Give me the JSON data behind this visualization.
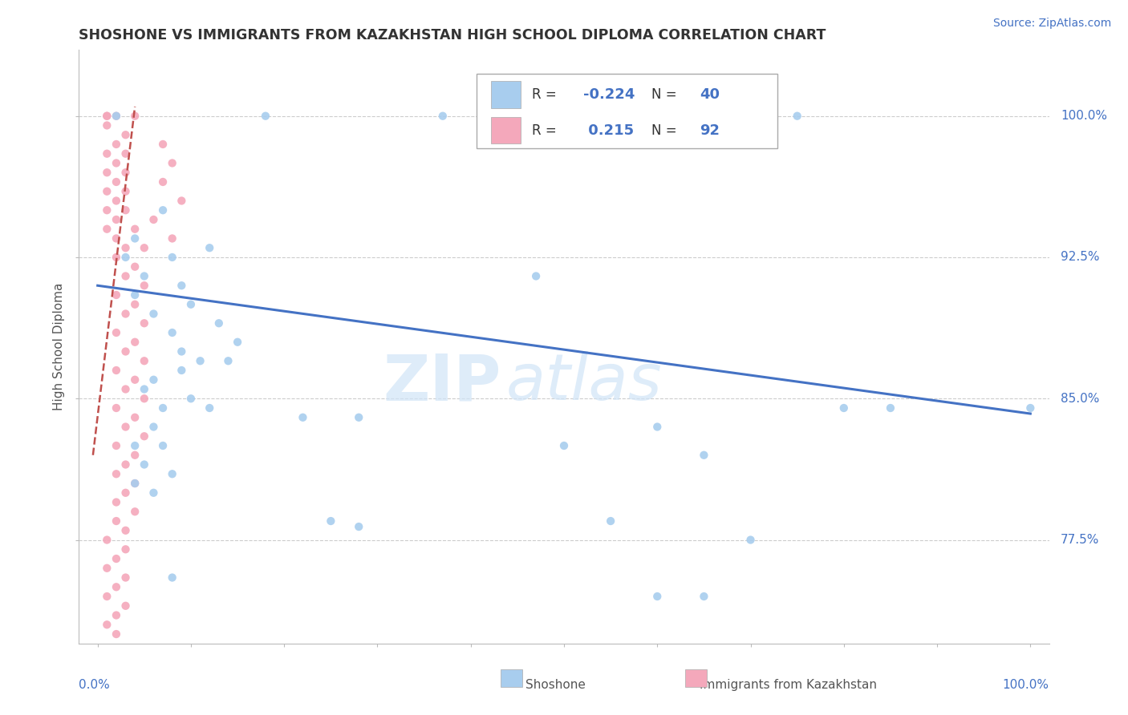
{
  "title": "SHOSHONE VS IMMIGRANTS FROM KAZAKHSTAN HIGH SCHOOL DIPLOMA CORRELATION CHART",
  "source": "Source: ZipAtlas.com",
  "ylabel": "High School Diploma",
  "yticks": [
    77.5,
    85.0,
    92.5,
    100.0
  ],
  "ytick_labels": [
    "77.5%",
    "85.0%",
    "92.5%",
    "100.0%"
  ],
  "xlim": [
    -0.02,
    1.02
  ],
  "ylim": [
    72.0,
    103.5
  ],
  "blue_color": "#A8CDEE",
  "pink_color": "#F4A8BB",
  "trend_line_color": "#4472C4",
  "pink_trend_color": "#C0504D",
  "watermark_zip": "ZIP",
  "watermark_atlas": "atlas",
  "blue_scatter": [
    [
      0.02,
      100.0
    ],
    [
      0.18,
      100.0
    ],
    [
      0.37,
      100.0
    ],
    [
      0.6,
      100.0
    ],
    [
      0.75,
      100.0
    ],
    [
      0.07,
      95.0
    ],
    [
      0.04,
      93.5
    ],
    [
      0.12,
      93.0
    ],
    [
      0.03,
      92.5
    ],
    [
      0.08,
      92.5
    ],
    [
      0.05,
      91.5
    ],
    [
      0.09,
      91.0
    ],
    [
      0.04,
      90.5
    ],
    [
      0.1,
      90.0
    ],
    [
      0.06,
      89.5
    ],
    [
      0.13,
      89.0
    ],
    [
      0.08,
      88.5
    ],
    [
      0.15,
      88.0
    ],
    [
      0.09,
      87.5
    ],
    [
      0.11,
      87.0
    ],
    [
      0.14,
      87.0
    ],
    [
      0.06,
      86.0
    ],
    [
      0.09,
      86.5
    ],
    [
      0.05,
      85.5
    ],
    [
      0.1,
      85.0
    ],
    [
      0.07,
      84.5
    ],
    [
      0.12,
      84.5
    ],
    [
      0.06,
      83.5
    ],
    [
      0.04,
      82.5
    ],
    [
      0.07,
      82.5
    ],
    [
      0.05,
      81.5
    ],
    [
      0.08,
      81.0
    ],
    [
      0.04,
      80.5
    ],
    [
      0.06,
      80.0
    ],
    [
      0.22,
      84.0
    ],
    [
      0.28,
      84.0
    ],
    [
      0.25,
      78.5
    ],
    [
      0.28,
      78.2
    ],
    [
      0.08,
      75.5
    ],
    [
      0.47,
      91.5
    ],
    [
      0.85,
      84.5
    ],
    [
      0.5,
      82.5
    ],
    [
      0.6,
      83.5
    ],
    [
      0.65,
      82.0
    ],
    [
      0.8,
      84.5
    ],
    [
      0.65,
      74.5
    ],
    [
      0.7,
      77.5
    ],
    [
      0.6,
      74.5
    ],
    [
      0.55,
      78.5
    ],
    [
      1.0,
      84.5
    ]
  ],
  "pink_scatter": [
    [
      0.01,
      100.0
    ],
    [
      0.02,
      100.0
    ],
    [
      0.01,
      99.5
    ],
    [
      0.03,
      99.0
    ],
    [
      0.02,
      98.5
    ],
    [
      0.01,
      98.0
    ],
    [
      0.03,
      98.0
    ],
    [
      0.02,
      97.5
    ],
    [
      0.01,
      97.0
    ],
    [
      0.03,
      97.0
    ],
    [
      0.02,
      96.5
    ],
    [
      0.01,
      96.0
    ],
    [
      0.03,
      96.0
    ],
    [
      0.02,
      95.5
    ],
    [
      0.01,
      95.0
    ],
    [
      0.03,
      95.0
    ],
    [
      0.02,
      94.5
    ],
    [
      0.01,
      94.0
    ],
    [
      0.04,
      94.0
    ],
    [
      0.02,
      93.5
    ],
    [
      0.03,
      93.0
    ],
    [
      0.05,
      93.0
    ],
    [
      0.02,
      92.5
    ],
    [
      0.04,
      92.0
    ],
    [
      0.03,
      91.5
    ],
    [
      0.05,
      91.0
    ],
    [
      0.02,
      90.5
    ],
    [
      0.04,
      90.0
    ],
    [
      0.03,
      89.5
    ],
    [
      0.05,
      89.0
    ],
    [
      0.02,
      88.5
    ],
    [
      0.04,
      88.0
    ],
    [
      0.03,
      87.5
    ],
    [
      0.05,
      87.0
    ],
    [
      0.02,
      86.5
    ],
    [
      0.04,
      86.0
    ],
    [
      0.03,
      85.5
    ],
    [
      0.05,
      85.0
    ],
    [
      0.02,
      84.5
    ],
    [
      0.04,
      84.0
    ],
    [
      0.03,
      83.5
    ],
    [
      0.05,
      83.0
    ],
    [
      0.02,
      82.5
    ],
    [
      0.04,
      82.0
    ],
    [
      0.03,
      81.5
    ],
    [
      0.02,
      81.0
    ],
    [
      0.04,
      80.5
    ],
    [
      0.03,
      80.0
    ],
    [
      0.02,
      79.5
    ],
    [
      0.04,
      79.0
    ],
    [
      0.02,
      78.5
    ],
    [
      0.03,
      78.0
    ],
    [
      0.01,
      77.5
    ],
    [
      0.03,
      77.0
    ],
    [
      0.02,
      76.5
    ],
    [
      0.01,
      76.0
    ],
    [
      0.03,
      75.5
    ],
    [
      0.02,
      75.0
    ],
    [
      0.01,
      74.5
    ],
    [
      0.03,
      74.0
    ],
    [
      0.02,
      73.5
    ],
    [
      0.01,
      73.0
    ],
    [
      0.07,
      98.5
    ],
    [
      0.08,
      97.5
    ],
    [
      0.07,
      96.5
    ],
    [
      0.09,
      95.5
    ],
    [
      0.06,
      94.5
    ],
    [
      0.08,
      93.5
    ],
    [
      0.02,
      72.5
    ],
    [
      0.04,
      100.0
    ],
    [
      0.01,
      100.0
    ]
  ],
  "blue_trend_x": [
    0.0,
    1.0
  ],
  "blue_trend_y": [
    91.0,
    84.2
  ],
  "pink_trend_x": [
    -0.005,
    0.04
  ],
  "pink_trend_y": [
    82.0,
    100.5
  ]
}
